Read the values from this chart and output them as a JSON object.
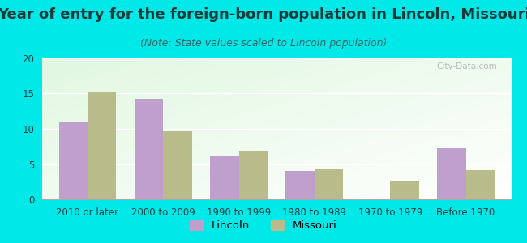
{
  "title": "Year of entry for the foreign-born population in Lincoln, Missouri",
  "subtitle": "(Note: State values scaled to Lincoln population)",
  "categories": [
    "2010 or later",
    "2000 to 2009",
    "1990 to 1999",
    "1980 to 1989",
    "1970 to 1979",
    "Before 1970"
  ],
  "lincoln_values": [
    11.0,
    14.2,
    6.2,
    4.0,
    0,
    7.2
  ],
  "missouri_values": [
    15.2,
    9.6,
    6.8,
    4.2,
    2.5,
    4.1
  ],
  "lincoln_color": "#bf9fcc",
  "missouri_color": "#b8bc8a",
  "background_outer": "#00e8e8",
  "ylim": [
    0,
    20
  ],
  "yticks": [
    0,
    5,
    10,
    15,
    20
  ],
  "bar_width": 0.38,
  "legend_labels": [
    "Lincoln",
    "Missouri"
  ],
  "title_fontsize": 13,
  "subtitle_fontsize": 9,
  "tick_fontsize": 8.5,
  "title_color": "#1a3a3a",
  "subtitle_color": "#336666",
  "tick_color": "#1a4040"
}
